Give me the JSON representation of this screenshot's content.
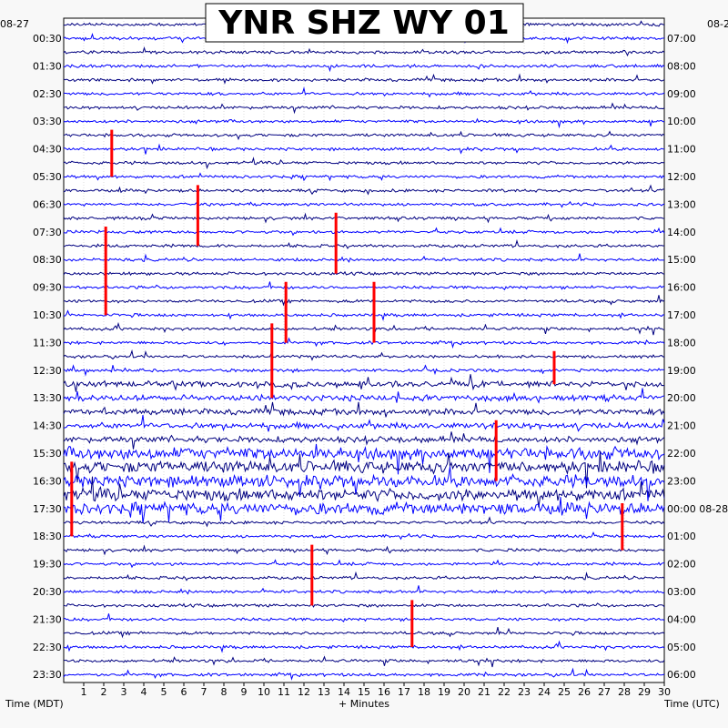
{
  "chart_data": {
    "type": "line",
    "title": "YNR SHZ WY 01",
    "xlabel": "+ Minutes",
    "left_axis_label": "Time (MDT)",
    "right_axis_label": "Time (UTC)",
    "date_left": "08-27",
    "date_right": "08-2",
    "date_right_rollover": "08-28",
    "x_ticks": [
      "1",
      "2",
      "3",
      "4",
      "5",
      "6",
      "7",
      "8",
      "9",
      "10",
      "11",
      "12",
      "13",
      "14",
      "15",
      "16",
      "17",
      "18",
      "19",
      "20",
      "21",
      "22",
      "23",
      "24",
      "25",
      "26",
      "27",
      "28",
      "29",
      "30"
    ],
    "xlim": [
      0,
      30
    ],
    "rows_per_hour": 2,
    "row_count": 48,
    "left_hour_labels": [
      "00:30",
      "01:30",
      "02:30",
      "03:30",
      "04:30",
      "05:30",
      "06:30",
      "07:30",
      "08:30",
      "09:30",
      "10:30",
      "11:30",
      "12:30",
      "13:30",
      "14:30",
      "15:30",
      "16:30",
      "17:30",
      "18:30",
      "19:30",
      "20:30",
      "21:30",
      "22:30",
      "23:30"
    ],
    "right_hour_labels": [
      "07:00",
      "08:00",
      "09:00",
      "10:00",
      "11:00",
      "12:00",
      "13:00",
      "14:00",
      "15:00",
      "16:00",
      "17:00",
      "18:00",
      "19:00",
      "20:00",
      "21:00",
      "22:00",
      "23:00",
      "00:00",
      "01:00",
      "02:00",
      "03:00",
      "04:00",
      "05:00",
      "06:00"
    ],
    "trace_colors": [
      "#000080",
      "#0000ff"
    ],
    "clip_color": "#ff0000",
    "grid": true
  }
}
